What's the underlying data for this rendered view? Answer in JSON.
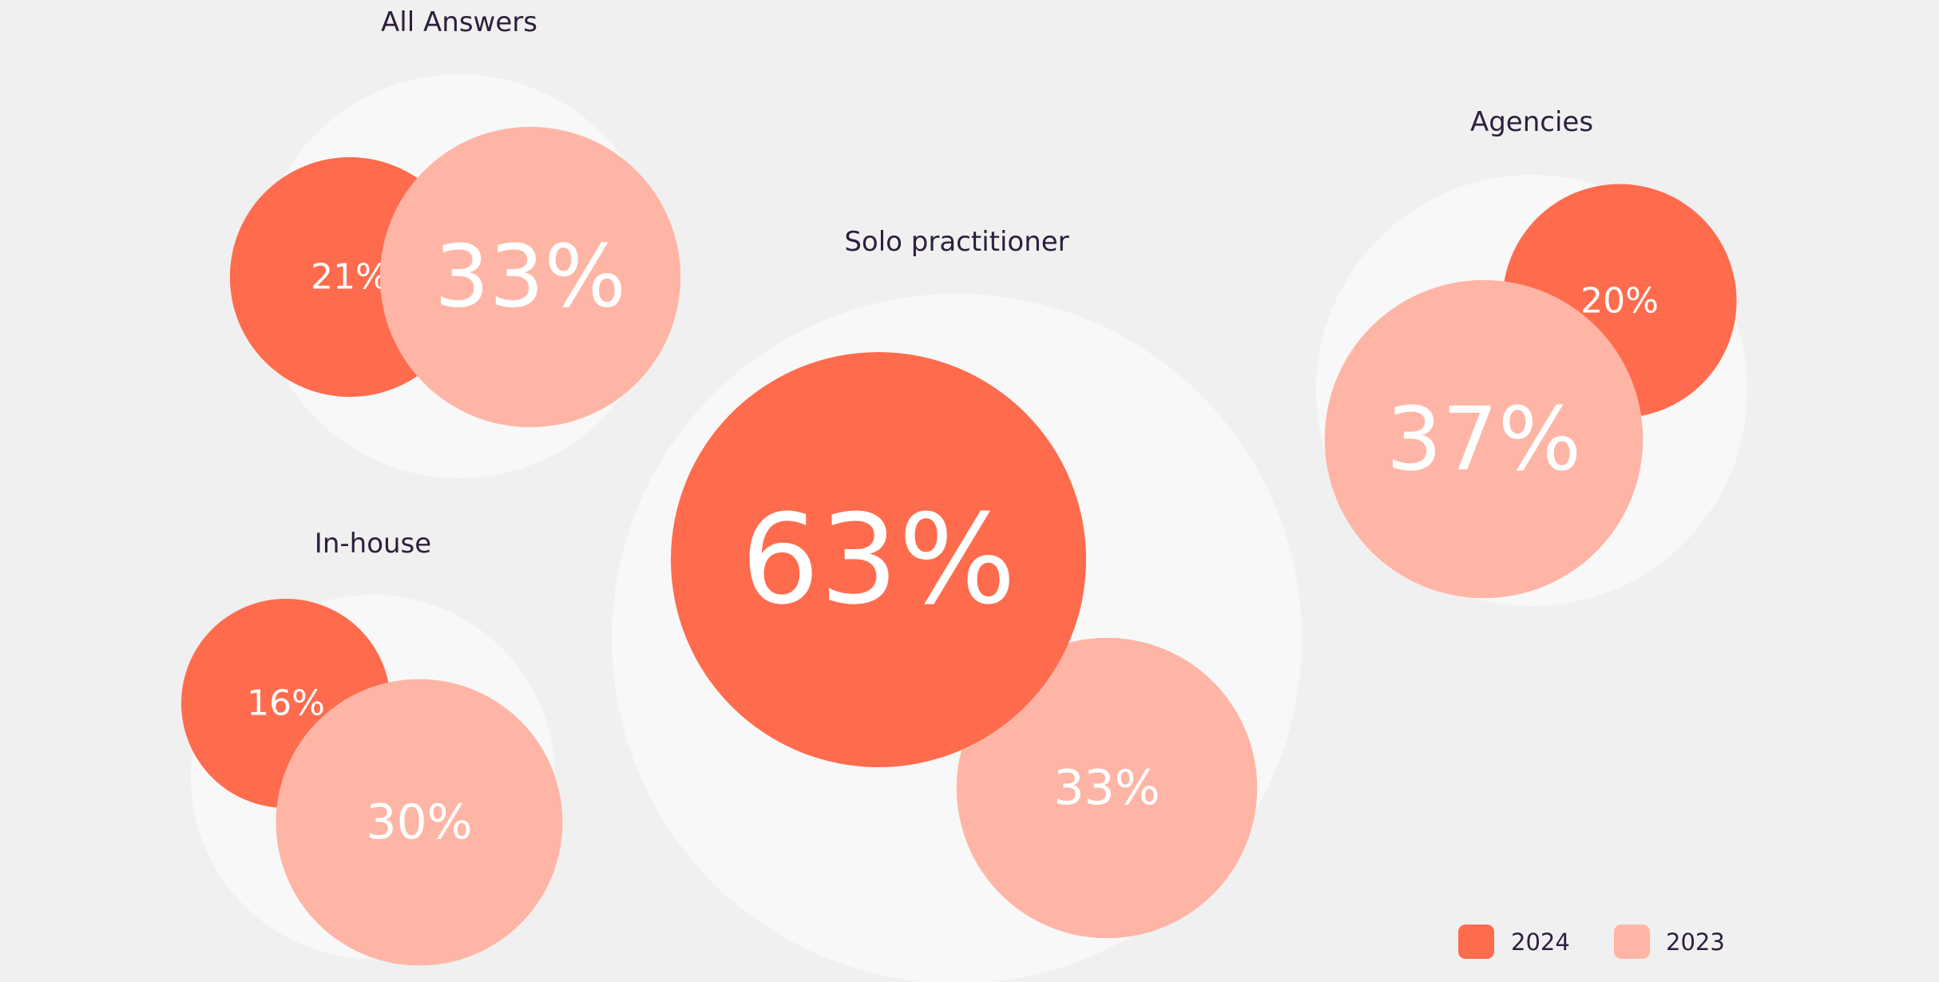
{
  "chart_data": {
    "type": "bubble",
    "title": "",
    "series": [
      {
        "name": "2024",
        "color": "#ff6b4d"
      },
      {
        "name": "2023",
        "color": "#ffb5a5"
      }
    ],
    "groups": [
      {
        "name": "All Answers",
        "2024": 21,
        "2023": 33
      },
      {
        "name": "Solo practitioner",
        "2024": 63,
        "2023": 33
      },
      {
        "name": "Agencies",
        "2024": 20,
        "2023": 37
      },
      {
        "name": "In-house",
        "2024": 16,
        "2023": 30
      }
    ],
    "legend": {
      "placement": "bottom-right",
      "items": [
        {
          "label": "2024",
          "color": "#ff6b4d"
        },
        {
          "label": "2023",
          "color": "#ffb5a5"
        }
      ]
    }
  },
  "colors": {
    "background": "#f0f0f0",
    "group_circle": "#f8f8f8",
    "title_text": "#2d1f3d",
    "value_text": "#ffffff"
  }
}
